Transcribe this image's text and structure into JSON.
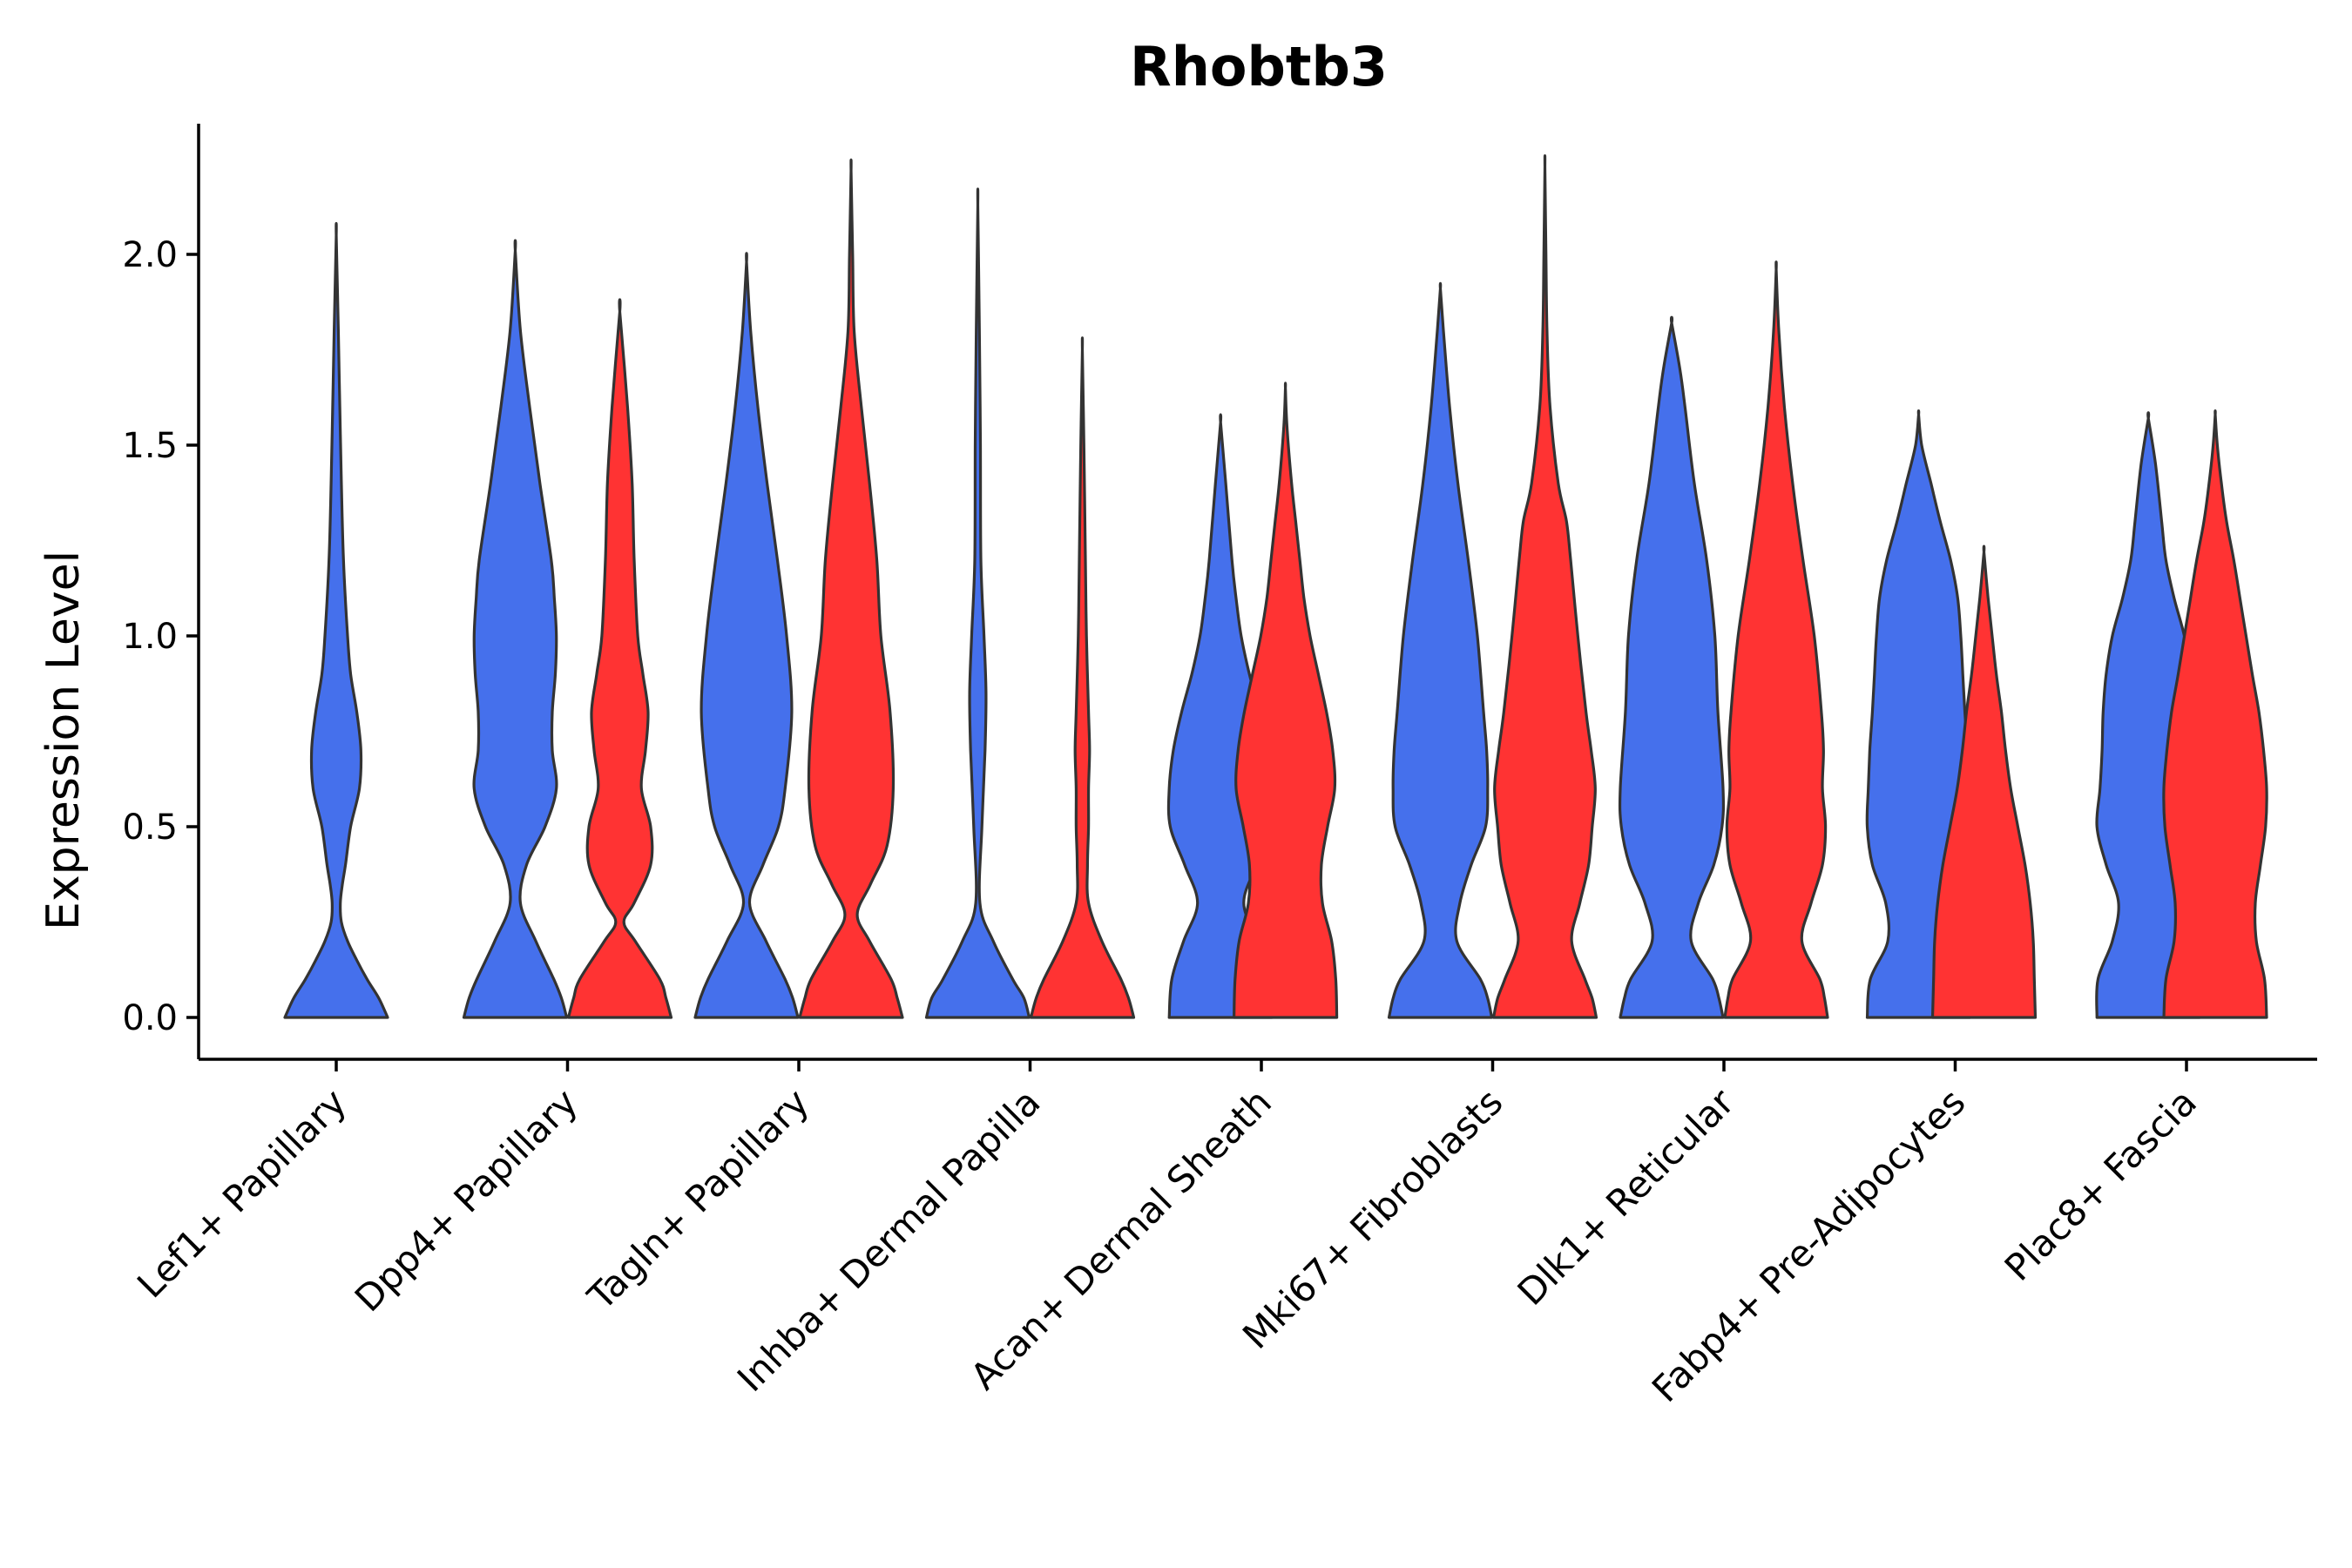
{
  "chart_data": {
    "type": "violin",
    "title": "Rhobtb3",
    "xlabel": "",
    "ylabel": "Expression Level",
    "ylim": [
      -0.11,
      2.34
    ],
    "yticks": [
      "0.0",
      "0.5",
      "1.0",
      "1.5",
      "2.0"
    ],
    "ytick_values": [
      0,
      0.5,
      1.0,
      1.5,
      2.0
    ],
    "grid": false,
    "legend": "none",
    "colors": {
      "group_a": "#4570EC",
      "group_b": "#FF3333",
      "outline": "#333333"
    },
    "categories": [
      "Lef1+ Papillary",
      "Dpp4+ Papillary",
      "Tagln+ Papillary",
      "Inhba+ Dermal Papilla",
      "Acan+ Dermal Sheath",
      "Mki67+ Fibroblasts",
      "Dlk1+ Reticular",
      "Fabp4+ Pre-Adipocytes",
      "Plac8+ Fascia"
    ],
    "violins": [
      {
        "category": 0,
        "group": "group_a",
        "offset": 0,
        "max": 2.05,
        "profile": [
          [
            0,
            1.0
          ],
          [
            0.05,
            0.83
          ],
          [
            0.1,
            0.6
          ],
          [
            0.15,
            0.4
          ],
          [
            0.2,
            0.22
          ],
          [
            0.25,
            0.1
          ],
          [
            0.3,
            0.08
          ],
          [
            0.35,
            0.12
          ],
          [
            0.4,
            0.18
          ],
          [
            0.5,
            0.28
          ],
          [
            0.6,
            0.45
          ],
          [
            0.7,
            0.48
          ],
          [
            0.8,
            0.4
          ],
          [
            0.9,
            0.28
          ],
          [
            1.0,
            0.22
          ],
          [
            1.2,
            0.14
          ],
          [
            1.4,
            0.1
          ],
          [
            1.6,
            0.07
          ],
          [
            1.8,
            0.04
          ],
          [
            2.05,
            0.0
          ]
        ]
      },
      {
        "category": 1,
        "group": "group_a",
        "offset": -1,
        "max": 2.01,
        "profile": [
          [
            0,
            1.0
          ],
          [
            0.05,
            0.9
          ],
          [
            0.1,
            0.75
          ],
          [
            0.2,
            0.4
          ],
          [
            0.3,
            0.1
          ],
          [
            0.4,
            0.22
          ],
          [
            0.5,
            0.58
          ],
          [
            0.6,
            0.8
          ],
          [
            0.7,
            0.72
          ],
          [
            0.8,
            0.72
          ],
          [
            0.9,
            0.78
          ],
          [
            1.0,
            0.8
          ],
          [
            1.1,
            0.76
          ],
          [
            1.2,
            0.7
          ],
          [
            1.4,
            0.48
          ],
          [
            1.6,
            0.28
          ],
          [
            1.8,
            0.1
          ],
          [
            2.01,
            0.0
          ]
        ]
      },
      {
        "category": 1,
        "group": "group_b",
        "offset": 1,
        "max": 1.85,
        "profile": [
          [
            0,
            1.0
          ],
          [
            0.05,
            0.9
          ],
          [
            0.1,
            0.78
          ],
          [
            0.2,
            0.3
          ],
          [
            0.25,
            0.08
          ],
          [
            0.3,
            0.28
          ],
          [
            0.4,
            0.6
          ],
          [
            0.5,
            0.6
          ],
          [
            0.6,
            0.42
          ],
          [
            0.7,
            0.5
          ],
          [
            0.8,
            0.55
          ],
          [
            0.9,
            0.45
          ],
          [
            1.0,
            0.35
          ],
          [
            1.2,
            0.28
          ],
          [
            1.4,
            0.24
          ],
          [
            1.6,
            0.15
          ],
          [
            1.85,
            0.0
          ]
        ]
      },
      {
        "category": 2,
        "group": "group_a",
        "offset": -1,
        "max": 1.98,
        "profile": [
          [
            0,
            1.0
          ],
          [
            0.05,
            0.9
          ],
          [
            0.1,
            0.75
          ],
          [
            0.2,
            0.38
          ],
          [
            0.3,
            0.06
          ],
          [
            0.4,
            0.32
          ],
          [
            0.5,
            0.62
          ],
          [
            0.6,
            0.75
          ],
          [
            0.8,
            0.88
          ],
          [
            1.0,
            0.78
          ],
          [
            1.2,
            0.6
          ],
          [
            1.4,
            0.4
          ],
          [
            1.6,
            0.22
          ],
          [
            1.8,
            0.08
          ],
          [
            1.98,
            0.0
          ]
        ]
      },
      {
        "category": 2,
        "group": "group_b",
        "offset": 1,
        "max": 2.22,
        "profile": [
          [
            0,
            1.0
          ],
          [
            0.05,
            0.9
          ],
          [
            0.1,
            0.78
          ],
          [
            0.2,
            0.36
          ],
          [
            0.27,
            0.12
          ],
          [
            0.35,
            0.38
          ],
          [
            0.45,
            0.7
          ],
          [
            0.6,
            0.82
          ],
          [
            0.8,
            0.76
          ],
          [
            1.0,
            0.58
          ],
          [
            1.2,
            0.5
          ],
          [
            1.4,
            0.36
          ],
          [
            1.6,
            0.2
          ],
          [
            1.8,
            0.06
          ],
          [
            2.0,
            0.03
          ],
          [
            2.22,
            0.0
          ]
        ]
      },
      {
        "category": 3,
        "group": "group_a",
        "offset": -1,
        "max": 2.13,
        "profile": [
          [
            0,
            1.0
          ],
          [
            0.05,
            0.9
          ],
          [
            0.1,
            0.68
          ],
          [
            0.2,
            0.3
          ],
          [
            0.3,
            0.04
          ],
          [
            0.5,
            0.08
          ],
          [
            0.7,
            0.14
          ],
          [
            0.85,
            0.16
          ],
          [
            1.0,
            0.12
          ],
          [
            1.2,
            0.06
          ],
          [
            1.5,
            0.05
          ],
          [
            1.8,
            0.03
          ],
          [
            2.13,
            0.0
          ]
        ]
      },
      {
        "category": 3,
        "group": "group_b",
        "offset": 1,
        "max": 1.75,
        "profile": [
          [
            0,
            1.0
          ],
          [
            0.05,
            0.9
          ],
          [
            0.1,
            0.75
          ],
          [
            0.2,
            0.38
          ],
          [
            0.3,
            0.12
          ],
          [
            0.4,
            0.1
          ],
          [
            0.5,
            0.12
          ],
          [
            0.6,
            0.12
          ],
          [
            0.7,
            0.14
          ],
          [
            0.8,
            0.12
          ],
          [
            1.0,
            0.08
          ],
          [
            1.2,
            0.06
          ],
          [
            1.5,
            0.03
          ],
          [
            1.75,
            0.0
          ]
        ]
      },
      {
        "category": 4,
        "group": "group_a",
        "offset": -0.78,
        "max": 1.56,
        "profile": [
          [
            0,
            1.0
          ],
          [
            0.1,
            0.95
          ],
          [
            0.2,
            0.72
          ],
          [
            0.3,
            0.45
          ],
          [
            0.4,
            0.7
          ],
          [
            0.5,
            0.98
          ],
          [
            0.6,
            1.0
          ],
          [
            0.7,
            0.92
          ],
          [
            0.8,
            0.76
          ],
          [
            0.9,
            0.56
          ],
          [
            1.0,
            0.4
          ],
          [
            1.1,
            0.3
          ],
          [
            1.2,
            0.22
          ],
          [
            1.4,
            0.1
          ],
          [
            1.56,
            0.0
          ]
        ]
      },
      {
        "category": 4,
        "group": "group_b",
        "offset": 0.46,
        "max": 1.65,
        "profile": [
          [
            0,
            1.0
          ],
          [
            0.1,
            0.98
          ],
          [
            0.2,
            0.9
          ],
          [
            0.3,
            0.72
          ],
          [
            0.4,
            0.7
          ],
          [
            0.5,
            0.82
          ],
          [
            0.6,
            0.96
          ],
          [
            0.7,
            0.92
          ],
          [
            0.8,
            0.8
          ],
          [
            0.9,
            0.64
          ],
          [
            1.0,
            0.48
          ],
          [
            1.1,
            0.36
          ],
          [
            1.2,
            0.28
          ],
          [
            1.3,
            0.2
          ],
          [
            1.4,
            0.12
          ],
          [
            1.55,
            0.03
          ],
          [
            1.65,
            0.0
          ]
        ]
      },
      {
        "category": 5,
        "group": "group_a",
        "offset": -1,
        "max": 1.91,
        "profile": [
          [
            0,
            1.0
          ],
          [
            0.05,
            0.92
          ],
          [
            0.1,
            0.78
          ],
          [
            0.2,
            0.32
          ],
          [
            0.3,
            0.38
          ],
          [
            0.4,
            0.6
          ],
          [
            0.5,
            0.88
          ],
          [
            0.6,
            0.92
          ],
          [
            0.7,
            0.9
          ],
          [
            0.8,
            0.84
          ],
          [
            1.0,
            0.72
          ],
          [
            1.2,
            0.54
          ],
          [
            1.4,
            0.34
          ],
          [
            1.6,
            0.18
          ],
          [
            1.8,
            0.06
          ],
          [
            1.91,
            0.0
          ]
        ]
      },
      {
        "category": 5,
        "group": "group_b",
        "offset": 1,
        "max": 2.23,
        "profile": [
          [
            0,
            1.0
          ],
          [
            0.05,
            0.92
          ],
          [
            0.1,
            0.78
          ],
          [
            0.2,
            0.52
          ],
          [
            0.3,
            0.68
          ],
          [
            0.4,
            0.85
          ],
          [
            0.5,
            0.92
          ],
          [
            0.6,
            0.98
          ],
          [
            0.7,
            0.9
          ],
          [
            0.8,
            0.8
          ],
          [
            1.0,
            0.64
          ],
          [
            1.2,
            0.5
          ],
          [
            1.3,
            0.42
          ],
          [
            1.4,
            0.26
          ],
          [
            1.6,
            0.1
          ],
          [
            1.8,
            0.04
          ],
          [
            2.0,
            0.02
          ],
          [
            2.23,
            0.0
          ]
        ]
      },
      {
        "category": 6,
        "group": "group_a",
        "offset": -1,
        "max": 1.82,
        "profile": [
          [
            0,
            1.0
          ],
          [
            0.05,
            0.92
          ],
          [
            0.1,
            0.8
          ],
          [
            0.2,
            0.38
          ],
          [
            0.3,
            0.52
          ],
          [
            0.4,
            0.82
          ],
          [
            0.5,
            0.98
          ],
          [
            0.6,
            1.0
          ],
          [
            0.8,
            0.9
          ],
          [
            1.0,
            0.84
          ],
          [
            1.2,
            0.68
          ],
          [
            1.4,
            0.44
          ],
          [
            1.6,
            0.26
          ],
          [
            1.7,
            0.16
          ],
          [
            1.82,
            0.0
          ]
        ]
      },
      {
        "category": 6,
        "group": "group_b",
        "offset": 1,
        "max": 1.96,
        "profile": [
          [
            0,
            1.0
          ],
          [
            0.05,
            0.94
          ],
          [
            0.1,
            0.85
          ],
          [
            0.2,
            0.5
          ],
          [
            0.3,
            0.68
          ],
          [
            0.4,
            0.9
          ],
          [
            0.5,
            0.96
          ],
          [
            0.6,
            0.9
          ],
          [
            0.7,
            0.92
          ],
          [
            0.8,
            0.88
          ],
          [
            1.0,
            0.74
          ],
          [
            1.2,
            0.52
          ],
          [
            1.4,
            0.32
          ],
          [
            1.6,
            0.16
          ],
          [
            1.8,
            0.05
          ],
          [
            1.96,
            0.0
          ]
        ]
      },
      {
        "category": 7,
        "group": "group_a",
        "offset": -0.7,
        "max": 1.58,
        "profile": [
          [
            0,
            1.0
          ],
          [
            0.1,
            0.94
          ],
          [
            0.2,
            0.6
          ],
          [
            0.3,
            0.64
          ],
          [
            0.4,
            0.9
          ],
          [
            0.5,
            1.0
          ],
          [
            0.6,
            0.98
          ],
          [
            0.7,
            0.95
          ],
          [
            0.8,
            0.9
          ],
          [
            0.9,
            0.86
          ],
          [
            1.0,
            0.82
          ],
          [
            1.1,
            0.76
          ],
          [
            1.2,
            0.62
          ],
          [
            1.3,
            0.42
          ],
          [
            1.4,
            0.24
          ],
          [
            1.5,
            0.06
          ],
          [
            1.58,
            0.0
          ]
        ]
      },
      {
        "category": 7,
        "group": "group_b",
        "offset": 0.55,
        "max": 1.22,
        "profile": [
          [
            0,
            1.0
          ],
          [
            0.1,
            0.98
          ],
          [
            0.2,
            0.96
          ],
          [
            0.3,
            0.9
          ],
          [
            0.4,
            0.8
          ],
          [
            0.5,
            0.66
          ],
          [
            0.6,
            0.52
          ],
          [
            0.7,
            0.42
          ],
          [
            0.8,
            0.34
          ],
          [
            0.9,
            0.24
          ],
          [
            1.0,
            0.16
          ],
          [
            1.1,
            0.08
          ],
          [
            1.22,
            0.0
          ]
        ]
      },
      {
        "category": 8,
        "group": "group_a",
        "offset": -0.73,
        "max": 1.57,
        "profile": [
          [
            0,
            1.0
          ],
          [
            0.1,
            0.98
          ],
          [
            0.2,
            0.7
          ],
          [
            0.3,
            0.58
          ],
          [
            0.4,
            0.82
          ],
          [
            0.5,
            1.0
          ],
          [
            0.6,
            0.94
          ],
          [
            0.7,
            0.9
          ],
          [
            0.8,
            0.88
          ],
          [
            0.9,
            0.82
          ],
          [
            1.0,
            0.7
          ],
          [
            1.1,
            0.5
          ],
          [
            1.2,
            0.34
          ],
          [
            1.3,
            0.26
          ],
          [
            1.45,
            0.14
          ],
          [
            1.57,
            0.0
          ]
        ]
      },
      {
        "category": 8,
        "group": "group_b",
        "offset": 0.55,
        "max": 1.58,
        "profile": [
          [
            0,
            1.0
          ],
          [
            0.1,
            0.96
          ],
          [
            0.2,
            0.8
          ],
          [
            0.3,
            0.78
          ],
          [
            0.4,
            0.88
          ],
          [
            0.5,
            0.98
          ],
          [
            0.6,
            1.0
          ],
          [
            0.7,
            0.94
          ],
          [
            0.8,
            0.85
          ],
          [
            0.9,
            0.72
          ],
          [
            1.0,
            0.6
          ],
          [
            1.1,
            0.48
          ],
          [
            1.2,
            0.36
          ],
          [
            1.3,
            0.22
          ],
          [
            1.4,
            0.12
          ],
          [
            1.5,
            0.04
          ],
          [
            1.58,
            0.0
          ]
        ]
      }
    ]
  }
}
